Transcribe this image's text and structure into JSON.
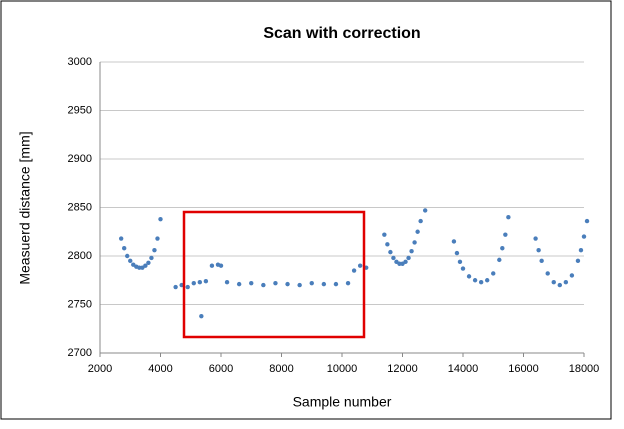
{
  "chart_data": {
    "type": "scatter",
    "title": "Scan with correction",
    "x_label": "Sample number",
    "y_label": "Measuerd distance  [mm]",
    "x": [
      2700,
      2800,
      2900,
      3000,
      3100,
      3200,
      3300,
      3400,
      3500,
      3600,
      3700,
      3800,
      3900,
      4000,
      4500,
      4700,
      4900,
      5100,
      5300,
      5350,
      5500,
      5700,
      5900,
      6000,
      6200,
      6600,
      7000,
      7400,
      7800,
      8200,
      8600,
      9000,
      9400,
      9800,
      10200,
      10400,
      10600,
      10800,
      11400,
      11500,
      11600,
      11700,
      11800,
      11900,
      12000,
      12100,
      12200,
      12300,
      12400,
      12500,
      12600,
      12750,
      13700,
      13800,
      13900,
      14000,
      14200,
      14400,
      14600,
      14800,
      15000,
      15200,
      15300,
      15400,
      15500,
      16400,
      16500,
      16600,
      16800,
      17000,
      17200,
      17400,
      17600,
      17800,
      17900,
      18000,
      18100
    ],
    "series": [
      {
        "color": "#4a7ebb",
        "values": [
          2818,
          2808,
          2800,
          2795,
          2791,
          2789,
          2788,
          2788,
          2790,
          2793,
          2798,
          2806,
          2818,
          2838,
          2768,
          2770,
          2768,
          2772,
          2773,
          2738,
          2774,
          2790,
          2791,
          2790,
          2773,
          2771,
          2772,
          2770,
          2772,
          2771,
          2770,
          2772,
          2771,
          2771,
          2772,
          2785,
          2790,
          2788,
          2822,
          2812,
          2804,
          2798,
          2794,
          2792,
          2792,
          2794,
          2798,
          2805,
          2814,
          2825,
          2836,
          2847,
          2815,
          2803,
          2794,
          2787,
          2779,
          2775,
          2773,
          2775,
          2782,
          2796,
          2808,
          2822,
          2840,
          2818,
          2806,
          2795,
          2782,
          2773,
          2770,
          2773,
          2780,
          2795,
          2806,
          2820,
          2836
        ]
      }
    ],
    "xlim": [
      2000,
      18000
    ],
    "xticks": [
      2000,
      4000,
      6000,
      8000,
      10000,
      12000,
      14000,
      16000,
      18000
    ],
    "ylim": [
      2700,
      3000
    ],
    "yticks": [
      2700,
      2750,
      2800,
      2850,
      2900,
      2950,
      3000
    ],
    "grid": true
  }
}
